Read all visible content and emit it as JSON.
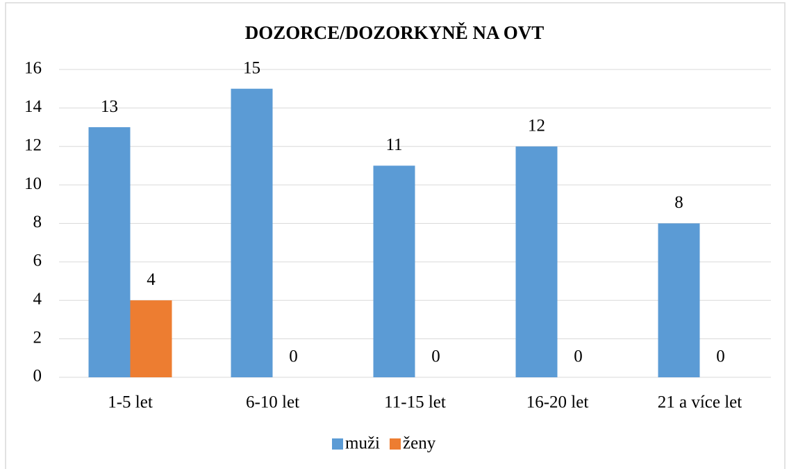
{
  "chart_data": {
    "type": "bar",
    "title": "DOZORCE/DOZORKYNĚ NA OVT",
    "categories": [
      "1-5 let",
      "6-10 let",
      "11-15 let",
      "16-20 let",
      "21 a více let"
    ],
    "series": [
      {
        "name": "muži",
        "color": "#5b9bd5",
        "values": [
          13,
          15,
          11,
          12,
          8
        ]
      },
      {
        "name": "ženy",
        "color": "#ed7d31",
        "values": [
          4,
          0,
          0,
          0,
          0
        ]
      }
    ],
    "ylim": [
      0,
      16
    ],
    "yticks": [
      0,
      2,
      4,
      6,
      8,
      10,
      12,
      14,
      16
    ],
    "grid": true,
    "legend": "bottom"
  }
}
